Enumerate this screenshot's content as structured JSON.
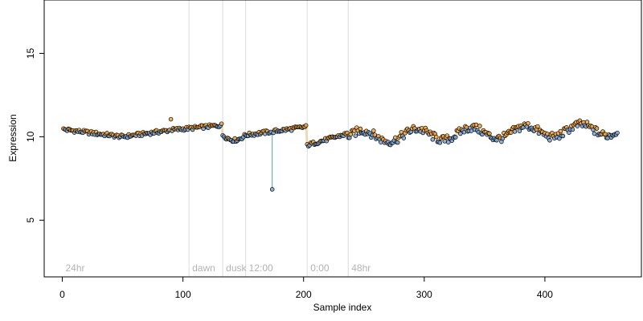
{
  "chart_data": {
    "type": "scatter",
    "title": "",
    "xlabel": "Sample index",
    "ylabel": "Expression",
    "xlim": [
      -15,
      480
    ],
    "ylim": [
      1.6,
      18.2
    ],
    "x_ticks": [
      0,
      100,
      200,
      300,
      400
    ],
    "x_tick_labels": [
      "0",
      "100",
      "200",
      "300",
      "400"
    ],
    "y_ticks": [
      5,
      10,
      15
    ],
    "y_tick_labels": [
      "5",
      "10",
      "15"
    ],
    "grid": false,
    "legend": "none",
    "n_points": 460,
    "colors": {
      "above_fit": "#f2a33a",
      "below_fit": "#7aa6d8",
      "point_outline": "#000000",
      "residual_line": "#5f9ea0",
      "segment_line": "#dcdcdc",
      "annotation_text": "#b3b3b3"
    },
    "segments": [
      {
        "label": "24hr",
        "start": 0
      },
      {
        "label": "dawn",
        "start": 105
      },
      {
        "label": "dusk",
        "start": 133
      },
      {
        "label": "12:00",
        "start": 152
      },
      {
        "label": "0:00",
        "start": 203
      },
      {
        "label": "48hr",
        "start": 237
      }
    ],
    "outliers": [
      {
        "x": 90,
        "y": 11.05
      },
      {
        "x": 174,
        "y": 6.85
      }
    ]
  }
}
